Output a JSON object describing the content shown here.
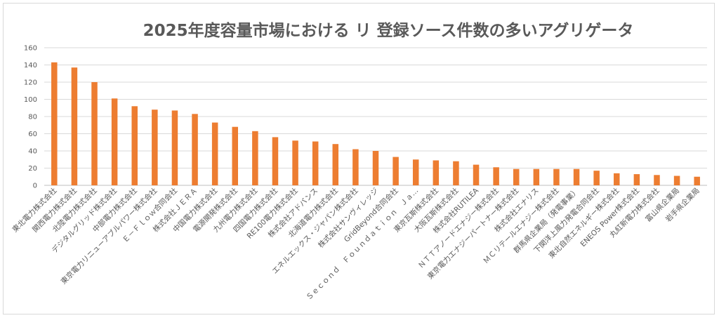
{
  "chart_data": {
    "type": "bar",
    "title": "2025年度容量市場における リ 登録ソース件数の多いアグリゲータ",
    "xlabel": "",
    "ylabel": "",
    "ylim": [
      0,
      160
    ],
    "yticks": [
      0,
      20,
      40,
      60,
      80,
      100,
      120,
      140,
      160
    ],
    "grid": true,
    "bar_color": "#ed7d31",
    "categories": [
      "東北電力株式会社",
      "関西電力株式会社",
      "北陸電力株式会社",
      "デジタルグリッド株式会社",
      "中部電力株式会社",
      "東京電力リニューアブルパワー株式会社",
      "Ｅ－Ｆｌｏｗ合同会社",
      "株式会社ＪＥＲＡ",
      "中国電力株式会社",
      "電源開発株式会社",
      "九州電力株式会社",
      "四国電力株式会社",
      "RE100電力株式会社",
      "株式会社アドバンス",
      "北海道電力株式会社",
      "エネルエックス・ジャパン株式会社",
      "株式会社サンヴィレッジ",
      "GridBeyond合同会社",
      "Ｓｅｃｏｎｄ　Ｆｏｕｎｄａｔｉｏｎ　Ｊａ…",
      "東京瓦斯株式会社",
      "大阪瓦斯株式会社",
      "株式会社RUTILEA",
      "ＮＴＴアノードエナジー株式会社",
      "東京電力エナジーパートナー株式会社",
      "株式会社エナリス",
      "ＭＣリテールエナジー株式会社",
      "群馬県企業局（発電事業）",
      "下関洋上風力発電合同会社",
      "東北自然エネルギー株式会社",
      "ENEOS Power株式会社",
      "丸紅新電力株式会社",
      "富山県企業局",
      "岩手県企業局"
    ],
    "values": [
      143,
      137,
      120,
      101,
      92,
      88,
      87,
      83,
      73,
      68,
      63,
      56,
      52,
      51,
      48,
      42,
      40,
      33,
      30,
      29,
      28,
      24,
      21,
      19,
      19,
      19,
      19,
      17,
      14,
      13,
      12,
      11,
      10
    ]
  }
}
